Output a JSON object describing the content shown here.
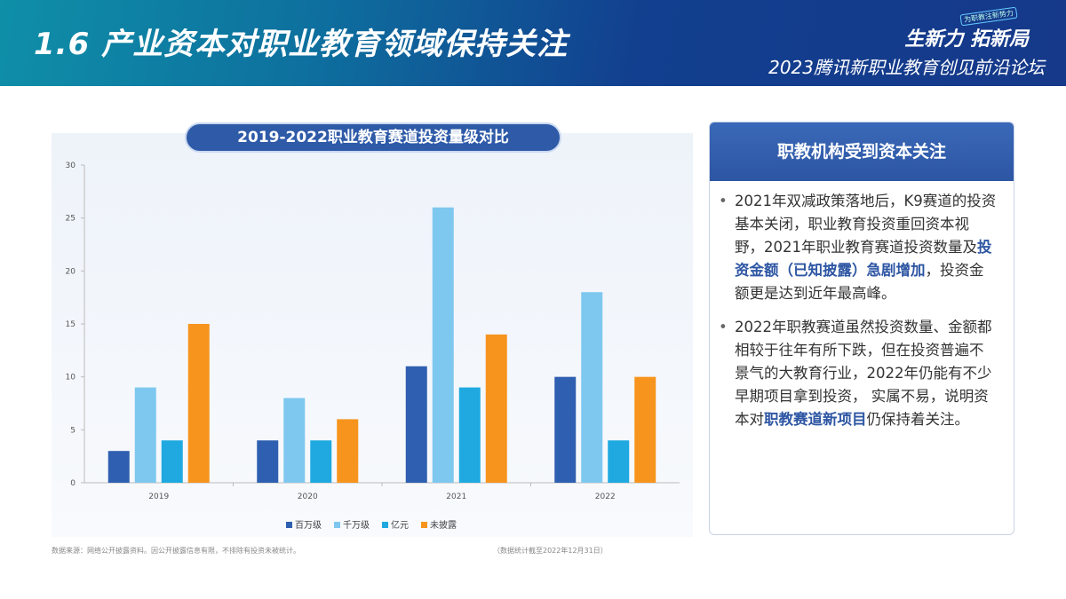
{
  "header": {
    "title": "1.6 产业资本对职业教育领域保持关注",
    "tag": "为职教注新势力",
    "slogan": "生新力 拓新局",
    "forum": "2023腾讯新职业教育创见前沿论坛"
  },
  "chart_data": {
    "type": "bar",
    "title": "2019-2022职业教育赛道投资量级对比",
    "categories": [
      "2019",
      "2020",
      "2021",
      "2022"
    ],
    "ylim": [
      0,
      30
    ],
    "yticks": [
      0,
      5,
      10,
      15,
      20,
      25,
      30
    ],
    "legend_position": "bottom",
    "series": [
      {
        "name": "百万级",
        "color": "#2f5fb0",
        "values": [
          3,
          4,
          11,
          10
        ]
      },
      {
        "name": "千万级",
        "color": "#7ec8ef",
        "values": [
          9,
          8,
          26,
          18
        ]
      },
      {
        "name": "亿元",
        "color": "#1fa9e0",
        "values": [
          4,
          4,
          9,
          4
        ]
      },
      {
        "name": "未披露",
        "color": "#f7941d",
        "values": [
          15,
          6,
          14,
          10
        ]
      }
    ]
  },
  "footer": {
    "source": "数据来源：网络公开披露资料。因公开披露信息有限，不排除有投资未被统计。",
    "asof": "（数据统计截至2022年12月31日）"
  },
  "panel": {
    "title": "职教机构受到资本关注",
    "b1": {
      "t1": "2021年双减政策落地后，K9赛道的投资基本关闭，职业教育投资重回资本视野，2021年职业教育赛道投资数量及",
      "hl": "投资金额（已知披露）急剧增加",
      "t2": "，投资金额更是达到近年最高峰。"
    },
    "b2": {
      "t1": "2022年职教赛道虽然投资数量、金额都相较于往年有所下跌，但在投资普遍不景气的大教育行业，2022年仍能有不少早期项目拿到投资， 实属不易，说明资本对",
      "hl": "职教赛道新项目",
      "t2": "仍保持着关注。"
    }
  }
}
